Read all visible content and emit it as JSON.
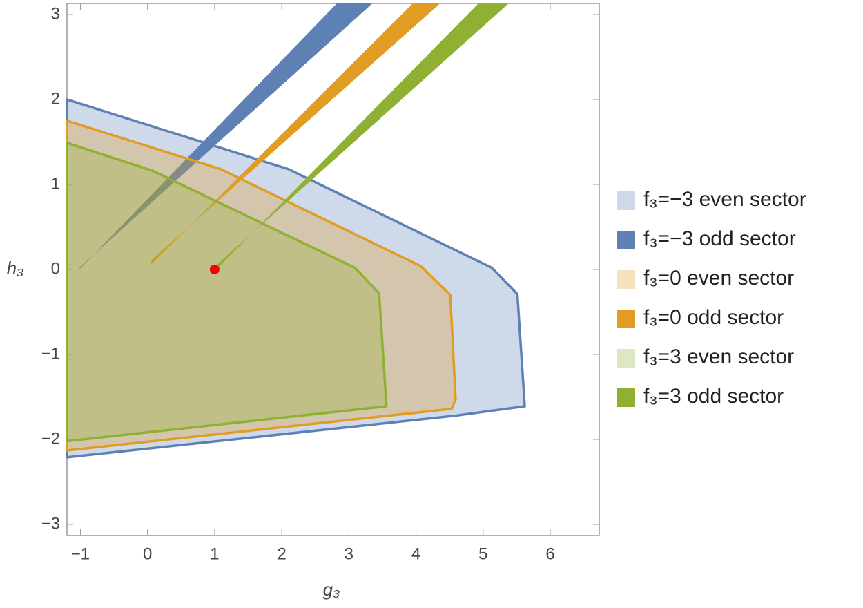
{
  "chart_data": {
    "type": "region",
    "x_label": "g₃",
    "y_label": "h₃",
    "xlim": [
      -1.2,
      6.73
    ],
    "ylim": [
      -3.13,
      3.13
    ],
    "xticks": [
      {
        "value": -1,
        "label": "−1"
      },
      0,
      1,
      2,
      3,
      4,
      5,
      6
    ],
    "yticks": [
      {
        "value": -3,
        "label": "−3"
      },
      {
        "value": -2,
        "label": "−2"
      },
      {
        "value": -1,
        "label": "−1"
      },
      0,
      1,
      2,
      3
    ],
    "series": [
      {
        "name": "f₃=−3 even sector",
        "color": "#5e81b5",
        "opacity": 0.3,
        "outline": true,
        "x": [
          -1.2,
          2.1,
          5.13,
          5.51,
          5.62,
          4.59,
          -1.2
        ],
        "y": [
          2.0,
          1.18,
          0.02,
          -0.29,
          -1.61,
          -1.72,
          -2.21
        ]
      },
      {
        "name": "f₃=−3 odd sector",
        "color": "#5e81b5",
        "opacity": 1,
        "outline": false,
        "x": [
          -1.04,
          2.82,
          3.35,
          -0.99
        ],
        "y": [
          -0.02,
          3.13,
          3.13,
          0.04
        ]
      },
      {
        "name": "f₃=0 even sector",
        "color": "#e19c24",
        "opacity": 0.3,
        "outline": true,
        "x": [
          -1.2,
          1.09,
          4.07,
          4.51,
          4.59,
          4.53,
          -1.2
        ],
        "y": [
          1.75,
          1.18,
          0.04,
          -0.3,
          -1.53,
          -1.64,
          -2.13
        ]
      },
      {
        "name": "f₃=0 odd sector",
        "color": "#e19c24",
        "opacity": 1,
        "outline": false,
        "x": [
          0.03,
          3.95,
          4.36,
          0.07
        ],
        "y": [
          0.04,
          3.13,
          3.13,
          0.12
        ]
      },
      {
        "name": "f₃=3 even sector",
        "color": "#8fb032",
        "opacity": 0.3,
        "outline": true,
        "x": [
          -1.2,
          0.08,
          3.09,
          3.45,
          3.56,
          -1.2
        ],
        "y": [
          1.49,
          1.16,
          0.02,
          -0.28,
          -1.61,
          -2.02
        ]
      },
      {
        "name": "f₃=3 odd sector",
        "color": "#8fb032",
        "opacity": 1,
        "outline": false,
        "x": [
          1.0,
          4.93,
          5.38,
          1.04
        ],
        "y": [
          -0.02,
          3.13,
          3.13,
          0.06
        ]
      }
    ],
    "point": {
      "x": 1,
      "y": 0,
      "color": "#ff0000"
    }
  }
}
